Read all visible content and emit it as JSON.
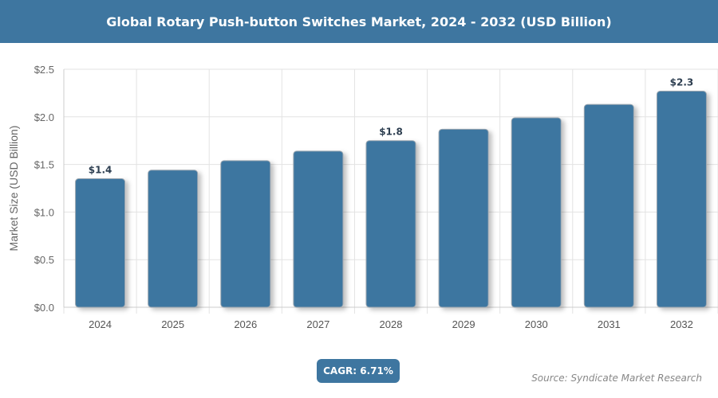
{
  "header": {
    "title": "Global Rotary Push-button Switches Market, 2024 - 2032 (USD Billion)"
  },
  "chart_data": {
    "type": "bar",
    "title": "Global Rotary Push-button Switches Market, 2024 - 2032 (USD Billion)",
    "categories": [
      "2024",
      "2025",
      "2026",
      "2027",
      "2028",
      "2029",
      "2030",
      "2031",
      "2032"
    ],
    "values": [
      1.35,
      1.44,
      1.54,
      1.64,
      1.75,
      1.87,
      1.99,
      2.13,
      2.27
    ],
    "data_labels": [
      {
        "index": 0,
        "text": "$1.4"
      },
      {
        "index": 4,
        "text": "$1.8"
      },
      {
        "index": 8,
        "text": "$2.3"
      }
    ],
    "xlabel": "",
    "ylabel": "Market Size (USD Billion)",
    "ylim": [
      0,
      2.5
    ],
    "yticks": [
      "$0.0",
      "$0.5",
      "$1.0",
      "$1.5",
      "$2.0",
      "$2.5"
    ],
    "grid": true,
    "bar_color": "#3e76a0"
  },
  "footer": {
    "cagr": "CAGR: 6.71%",
    "source": "Source: Syndicate Market Research"
  }
}
